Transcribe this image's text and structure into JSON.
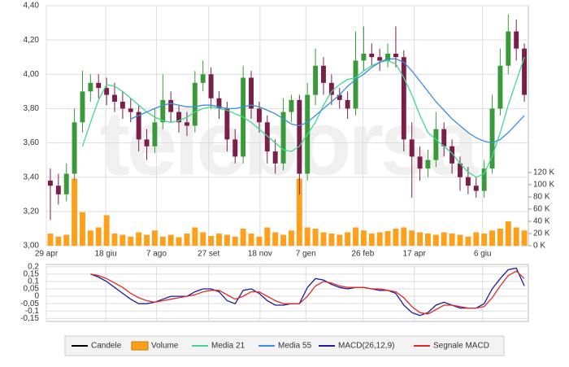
{
  "chart_data": [
    {
      "type": "candlestick",
      "watermark": "teleborsa",
      "xlim": [
        0,
        60
      ],
      "xticks": [
        {
          "value": 0,
          "label": "29 apr"
        },
        {
          "value": 7.4,
          "label": "18 giu"
        },
        {
          "value": 13.7,
          "label": "7 ago"
        },
        {
          "value": 20.2,
          "label": "27 set"
        },
        {
          "value": 26.6,
          "label": "18 nov"
        },
        {
          "value": 32.3,
          "label": "7 gen"
        },
        {
          "value": 39.4,
          "label": "26 feb"
        },
        {
          "value": 45.8,
          "label": "17 apr"
        },
        {
          "value": 54.3,
          "label": "6 giu"
        }
      ],
      "ylim": [
        3.0,
        4.4
      ],
      "yticks": [
        {
          "value": 3.0,
          "label": "3,00"
        },
        {
          "value": 3.2,
          "label": "3,20"
        },
        {
          "value": 3.4,
          "label": "3,40"
        },
        {
          "value": 3.6,
          "label": "3,60"
        },
        {
          "value": 3.8,
          "label": "3,80"
        },
        {
          "value": 4.0,
          "label": "4,00"
        },
        {
          "value": 4.2,
          "label": "4,20"
        },
        {
          "value": 4.4,
          "label": "4,40"
        }
      ],
      "y2lim": [
        0,
        393
      ],
      "y2ticks": [
        {
          "value": 0,
          "label": "0 K"
        },
        {
          "value": 20,
          "label": "20 K"
        },
        {
          "value": 40,
          "label": "40 K"
        },
        {
          "value": 60,
          "label": "60 K"
        },
        {
          "value": 80,
          "label": "80 K"
        },
        {
          "value": 100,
          "label": "100 K"
        },
        {
          "value": 120,
          "label": "120 K"
        }
      ],
      "grid": true,
      "series": [
        {
          "name": "Candele",
          "type": "candlestick",
          "color": "#000000",
          "up_color": "#3a9a3a",
          "down_color": "#7a1f4a",
          "open": [
            3.38,
            3.35,
            3.3,
            3.42,
            3.72,
            3.9,
            3.95,
            3.92,
            3.88,
            3.84,
            3.8,
            3.78,
            3.62,
            3.58,
            3.72,
            3.85,
            3.78,
            3.72,
            3.7,
            3.95,
            4.0,
            3.86,
            3.8,
            3.62,
            3.52,
            3.98,
            3.8,
            3.72,
            3.55,
            3.48,
            3.78,
            3.85,
            3.42,
            3.88,
            4.05,
            3.95,
            3.88,
            3.85,
            3.8,
            4.08,
            4.12,
            4.1,
            4.08,
            4.12,
            4.1,
            3.62,
            3.52,
            3.45,
            3.5,
            3.68,
            3.58,
            3.48,
            3.4,
            3.35,
            3.32,
            3.45,
            3.8,
            4.05,
            4.25,
            4.15
          ],
          "high": [
            3.45,
            3.42,
            3.48,
            3.8,
            4.02,
            4.0,
            4.0,
            3.98,
            3.95,
            3.9,
            3.86,
            3.82,
            3.68,
            3.8,
            4.0,
            3.9,
            3.82,
            3.78,
            4.02,
            4.08,
            4.04,
            3.9,
            3.84,
            3.68,
            4.05,
            4.02,
            3.84,
            3.76,
            3.62,
            3.86,
            3.88,
            3.88,
            3.95,
            4.15,
            4.1,
            4.0,
            3.92,
            3.9,
            4.25,
            4.28,
            4.18,
            4.15,
            4.18,
            4.28,
            4.14,
            3.72,
            3.58,
            3.56,
            3.78,
            3.72,
            3.62,
            3.52,
            3.46,
            3.4,
            3.5,
            3.88,
            4.15,
            4.35,
            4.32,
            4.18
          ],
          "low": [
            3.15,
            3.24,
            3.26,
            3.38,
            3.66,
            3.84,
            3.86,
            3.82,
            3.78,
            3.74,
            3.72,
            3.55,
            3.5,
            3.54,
            3.68,
            3.72,
            3.66,
            3.64,
            3.66,
            3.9,
            3.8,
            3.74,
            3.55,
            3.48,
            3.48,
            3.74,
            3.66,
            3.48,
            3.42,
            3.44,
            3.72,
            3.3,
            3.38,
            3.82,
            3.88,
            3.82,
            3.8,
            3.74,
            3.76,
            4.02,
            4.05,
            4.02,
            4.04,
            4.04,
            3.55,
            3.28,
            3.38,
            3.4,
            3.46,
            3.52,
            3.42,
            3.32,
            3.3,
            3.28,
            3.28,
            3.42,
            3.76,
            4.0,
            4.08,
            3.84
          ],
          "close": [
            3.35,
            3.3,
            3.42,
            3.72,
            3.9,
            3.95,
            3.92,
            3.88,
            3.84,
            3.8,
            3.78,
            3.62,
            3.58,
            3.72,
            3.85,
            3.78,
            3.72,
            3.7,
            3.95,
            4.0,
            3.86,
            3.8,
            3.62,
            3.52,
            3.98,
            3.8,
            3.72,
            3.55,
            3.48,
            3.78,
            3.85,
            3.42,
            3.88,
            4.05,
            3.95,
            3.88,
            3.85,
            3.8,
            4.08,
            4.12,
            4.1,
            4.08,
            4.12,
            4.1,
            3.62,
            3.52,
            3.45,
            3.5,
            3.68,
            3.58,
            3.48,
            3.4,
            3.35,
            3.32,
            3.45,
            3.8,
            4.05,
            4.25,
            4.15,
            3.88
          ]
        },
        {
          "name": "Volume",
          "type": "bar",
          "axis": "y2",
          "color": "#ff9f1a",
          "values": [
            20,
            15,
            18,
            110,
            55,
            25,
            30,
            50,
            20,
            18,
            15,
            22,
            18,
            25,
            15,
            18,
            14,
            20,
            30,
            22,
            16,
            20,
            18,
            15,
            28,
            20,
            15,
            30,
            22,
            18,
            25,
            110,
            30,
            28,
            22,
            20,
            18,
            22,
            30,
            25,
            20,
            22,
            24,
            28,
            30,
            25,
            22,
            20,
            18,
            22,
            20,
            18,
            15,
            22,
            20,
            25,
            28,
            40,
            30,
            25
          ]
        },
        {
          "name": "Media 21",
          "type": "line",
          "color": "#3fd98c",
          "values": [
            null,
            null,
            null,
            null,
            3.58,
            3.72,
            3.85,
            3.94,
            3.93,
            3.9,
            3.86,
            3.82,
            3.78,
            3.75,
            3.73,
            3.72,
            3.73,
            3.75,
            3.78,
            3.8,
            3.81,
            3.8,
            3.79,
            3.77,
            3.75,
            3.72,
            3.68,
            3.64,
            3.6,
            3.56,
            3.55,
            3.58,
            3.65,
            3.72,
            3.82,
            3.9,
            3.94,
            3.97,
            3.98,
            4.02,
            4.05,
            4.07,
            4.08,
            4.06,
            3.98,
            3.88,
            3.76,
            3.66,
            3.62,
            3.58,
            3.54,
            3.48,
            3.43,
            3.4,
            3.42,
            3.52,
            3.66,
            3.82,
            3.96,
            4.1
          ]
        },
        {
          "name": "Media 55",
          "type": "line",
          "color": "#3b8fe0",
          "values": [
            null,
            null,
            null,
            null,
            null,
            null,
            null,
            null,
            null,
            null,
            3.74,
            3.76,
            3.78,
            3.8,
            3.82,
            3.83,
            3.82,
            3.81,
            3.81,
            3.82,
            3.82,
            3.81,
            3.8,
            3.8,
            3.81,
            3.82,
            3.81,
            3.79,
            3.77,
            3.74,
            3.71,
            3.7,
            3.72,
            3.76,
            3.8,
            3.84,
            3.88,
            3.93,
            3.97,
            4.0,
            4.04,
            4.07,
            4.09,
            4.09,
            4.07,
            4.02,
            3.96,
            3.9,
            3.84,
            3.79,
            3.74,
            3.7,
            3.66,
            3.63,
            3.61,
            3.6,
            3.62,
            3.66,
            3.71,
            3.76
          ]
        }
      ]
    },
    {
      "type": "line",
      "ylim": [
        -0.17,
        0.215
      ],
      "yticks": [
        {
          "value": 0.2,
          "label": "0,2"
        },
        {
          "value": 0.15,
          "label": "0,15"
        },
        {
          "value": 0.1,
          "label": "0,1"
        },
        {
          "value": 0.05,
          "label": "0,05"
        },
        0,
        {
          "value": -0.05,
          "label": "-0,05"
        },
        {
          "value": -0.1,
          "label": "-0,1"
        },
        {
          "value": -0.15,
          "label": "-0,15"
        }
      ],
      "grid": true,
      "series": [
        {
          "name": "MACD(26,12,9)",
          "type": "line",
          "color": "#1c1c9c",
          "values": [
            null,
            null,
            null,
            null,
            null,
            0.15,
            0.13,
            0.1,
            0.06,
            0.02,
            -0.02,
            -0.05,
            -0.05,
            -0.04,
            -0.02,
            0.0,
            0.0,
            0.0,
            0.03,
            0.05,
            0.05,
            0.03,
            -0.03,
            -0.05,
            0.04,
            0.05,
            0.02,
            -0.03,
            -0.06,
            -0.06,
            -0.05,
            -0.05,
            0.06,
            0.12,
            0.11,
            0.08,
            0.06,
            0.05,
            0.06,
            0.06,
            0.05,
            0.04,
            0.04,
            0.02,
            -0.06,
            -0.11,
            -0.13,
            -0.11,
            -0.06,
            -0.04,
            -0.06,
            -0.08,
            -0.08,
            -0.08,
            -0.05,
            0.05,
            0.12,
            0.18,
            0.19,
            0.07
          ]
        },
        {
          "name": "Segnale MACD",
          "type": "line",
          "color": "#dd2a2a",
          "values": [
            null,
            null,
            null,
            null,
            null,
            0.15,
            0.14,
            0.12,
            0.09,
            0.06,
            0.02,
            -0.01,
            -0.03,
            -0.04,
            -0.03,
            -0.02,
            -0.01,
            0.0,
            0.01,
            0.03,
            0.04,
            0.04,
            0.01,
            -0.02,
            0.0,
            0.03,
            0.03,
            0.0,
            -0.03,
            -0.05,
            -0.05,
            -0.05,
            0.0,
            0.07,
            0.1,
            0.09,
            0.07,
            0.06,
            0.06,
            0.06,
            0.05,
            0.05,
            0.04,
            0.03,
            -0.01,
            -0.07,
            -0.11,
            -0.12,
            -0.09,
            -0.06,
            -0.06,
            -0.07,
            -0.08,
            -0.08,
            -0.07,
            -0.01,
            0.07,
            0.14,
            0.17,
            0.12
          ]
        }
      ]
    }
  ]
}
